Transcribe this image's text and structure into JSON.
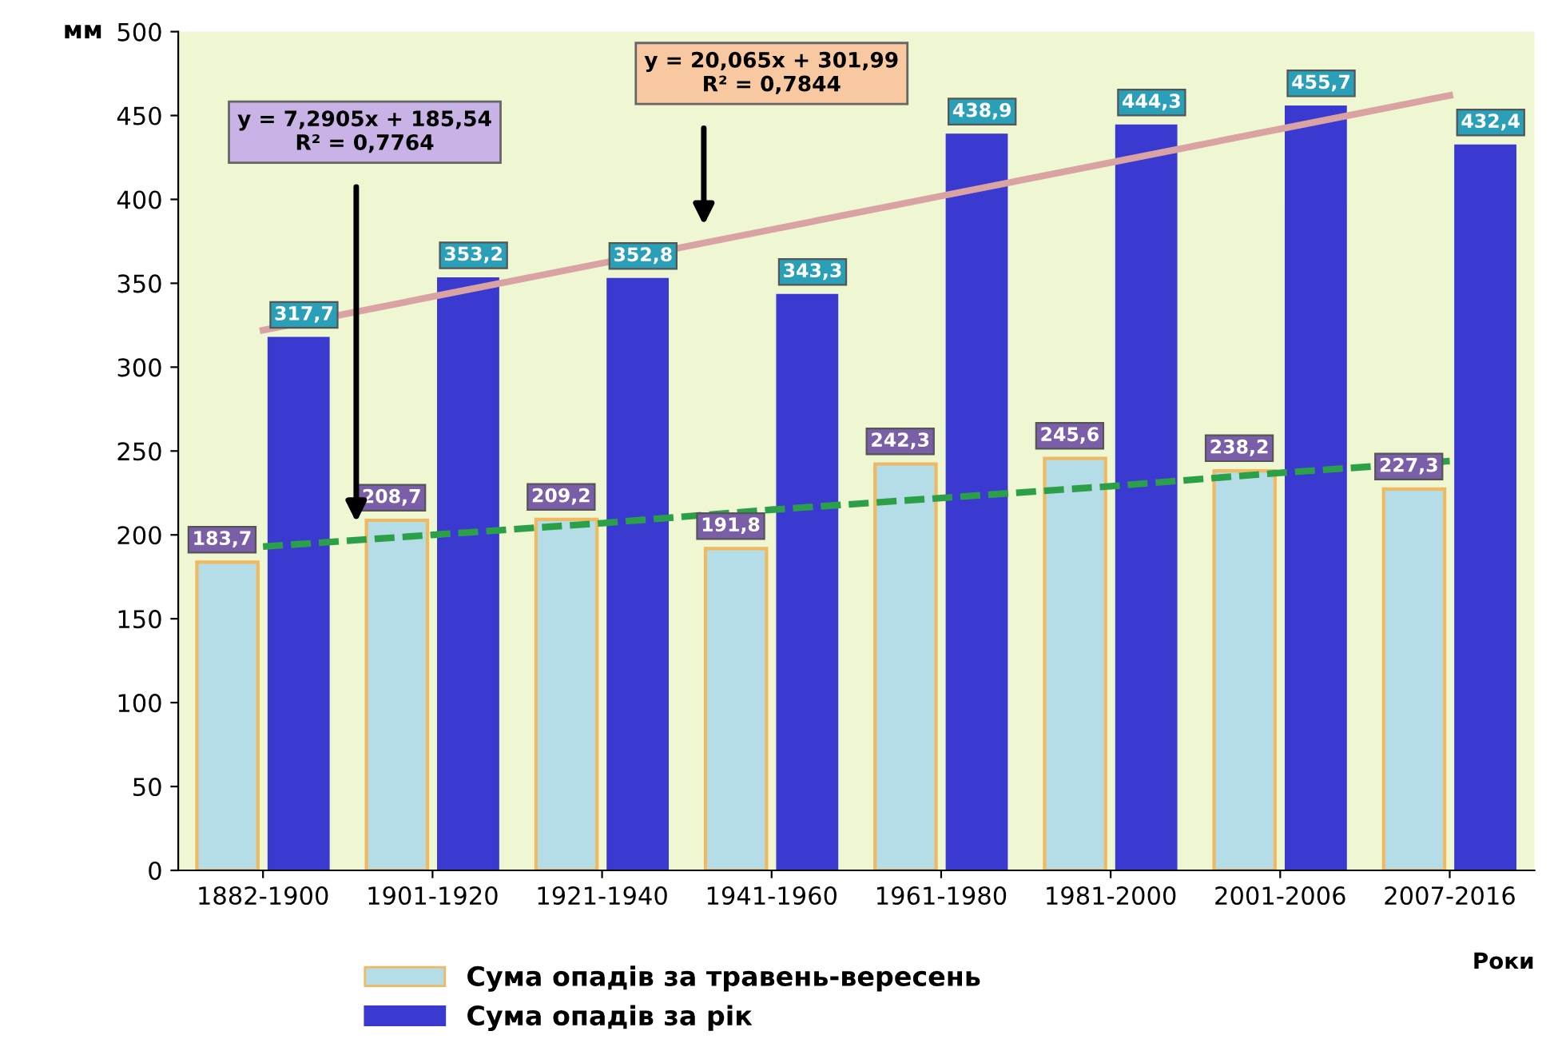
{
  "chart_data": {
    "type": "bar",
    "ylabel": "мм",
    "xlabel": "Роки",
    "categories": [
      "1882-1900",
      "1901-1920",
      "1921-1940",
      "1941-1960",
      "1961-1980",
      "1981-2000",
      "2001-2006",
      "2007-2016"
    ],
    "series": [
      {
        "name": "Сума опадів за травень-вересень",
        "color": "#b5dde8",
        "values": [
          183.7,
          208.7,
          209.2,
          191.8,
          242.3,
          245.6,
          238.2,
          227.3
        ],
        "value_labels": [
          "183,7",
          "208,7",
          "209,2",
          "191,8",
          "242,3",
          "245,6",
          "238,2",
          "227,3"
        ]
      },
      {
        "name": "Сума опадів за рік",
        "color": "#3a3ad0",
        "values": [
          317.7,
          353.2,
          352.8,
          343.3,
          438.9,
          444.3,
          455.7,
          432.4
        ],
        "value_labels": [
          "317,7",
          "353,2",
          "352,8",
          "343,3",
          "438,9",
          "444,3",
          "455,7",
          "432,4"
        ]
      },
      {
        "type": "line",
        "color": "#2ca048",
        "line_style": "dashed",
        "values": [
          193,
          200,
          207,
          215,
          222,
          229,
          237,
          244
        ]
      },
      {
        "type": "line",
        "color": "#d9a3a3",
        "line_style": "solid",
        "values": [
          322,
          342,
          362,
          382,
          402,
          422,
          442,
          462
        ]
      }
    ],
    "annotations": [
      "y = 7,2905x + 185,54\nR² = 0,7764",
      "y = 20,065x + 301,99\nR² = 0,7844"
    ],
    "ylim": [
      0,
      500
    ],
    "yticks": [
      0,
      50,
      100,
      150,
      200,
      250,
      300,
      350,
      400,
      450,
      500
    ],
    "grid": false,
    "legend": "bottom"
  }
}
